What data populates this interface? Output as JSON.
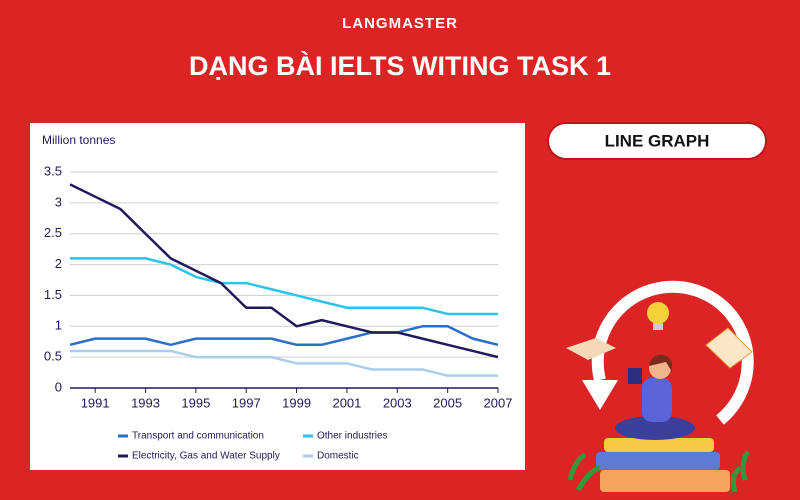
{
  "header": {
    "brand": "LANGMASTER",
    "title": "DẠNG BÀI IELTS WITING TASK 1"
  },
  "badge": "LINE GRAPH",
  "chart_data": {
    "type": "line",
    "y_label": "Million tonnes",
    "x": [
      1990,
      1991,
      1992,
      1993,
      1994,
      1995,
      1996,
      1997,
      1998,
      1999,
      2000,
      2001,
      2002,
      2003,
      2004,
      2005,
      2006,
      2007
    ],
    "xlim": [
      1990,
      2007
    ],
    "xticks": [
      1991,
      1993,
      1995,
      1997,
      1999,
      2001,
      2003,
      2005,
      2007
    ],
    "ylim": [
      0,
      3.5
    ],
    "yticks": [
      0,
      0.5,
      1,
      1.5,
      2,
      2.5,
      3,
      3.5
    ],
    "grid": true,
    "series": [
      {
        "name": "Transport and communication",
        "color": "#2a6fc9",
        "values": [
          0.7,
          0.8,
          0.8,
          0.8,
          0.7,
          0.8,
          0.8,
          0.8,
          0.8,
          0.7,
          0.7,
          0.8,
          0.9,
          0.9,
          1.0,
          1.0,
          0.8,
          0.7
        ]
      },
      {
        "name": "Other industries",
        "color": "#2cc3e8",
        "values": [
          2.1,
          2.1,
          2.1,
          2.1,
          2.0,
          1.8,
          1.7,
          1.7,
          1.6,
          1.5,
          1.4,
          1.3,
          1.3,
          1.3,
          1.3,
          1.2,
          1.2,
          1.2
        ]
      },
      {
        "name": "Electricity, Gas and Water Supply",
        "color": "#1f1a5c",
        "values": [
          3.3,
          3.1,
          2.9,
          2.5,
          2.1,
          1.9,
          1.7,
          1.3,
          1.3,
          1.0,
          1.1,
          1.0,
          0.9,
          0.9,
          0.8,
          0.7,
          0.6,
          0.5
        ]
      },
      {
        "name": "Domestic",
        "color": "#a9cdea",
        "values": [
          0.6,
          0.6,
          0.6,
          0.6,
          0.6,
          0.5,
          0.5,
          0.5,
          0.5,
          0.4,
          0.4,
          0.4,
          0.3,
          0.3,
          0.3,
          0.2,
          0.2,
          0.2
        ]
      }
    ]
  }
}
